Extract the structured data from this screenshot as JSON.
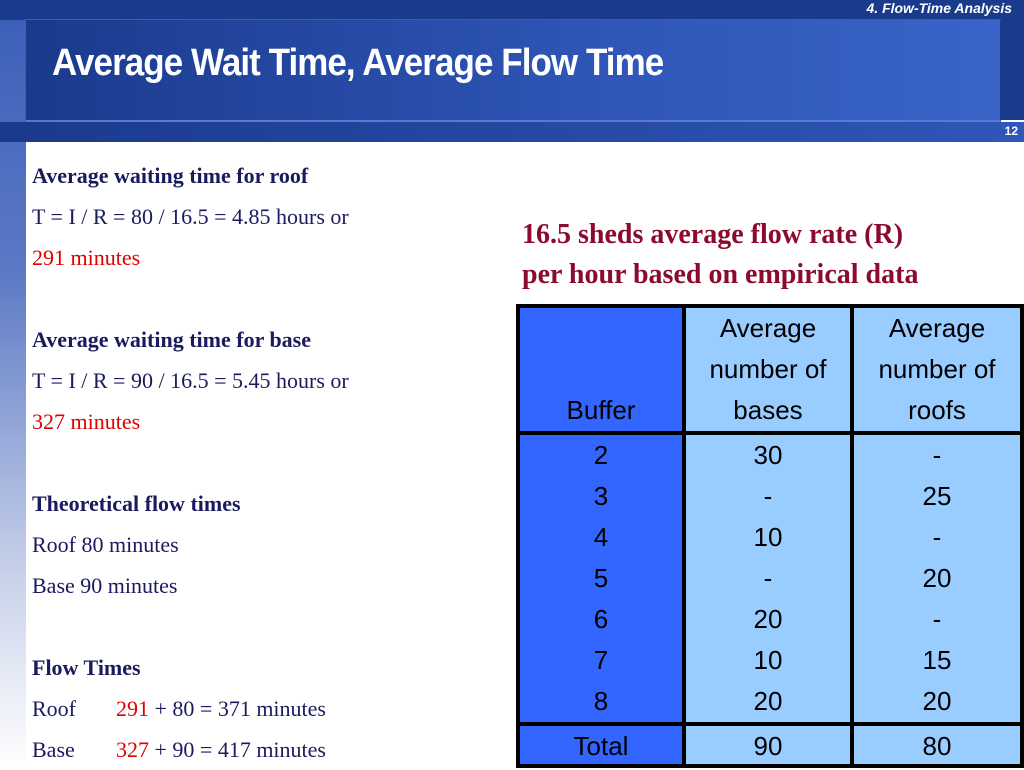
{
  "header": {
    "section": "4. Flow-Time Analysis",
    "title": "Average Wait Time, Average Flow Time",
    "page_number": "12"
  },
  "left": {
    "roof_heading": "Average waiting time for roof",
    "roof_formula": "T = I / R = 80 / 16.5 = 4.85 hours or",
    "roof_minutes": "291 minutes",
    "base_heading": "Average waiting time for base",
    "base_formula": "T = I / R = 90 / 16.5 = 5.45 hours or",
    "base_minutes": "327 minutes",
    "theo_heading": "Theoretical flow times",
    "theo_roof": "Roof 80 minutes",
    "theo_base": "Base 90 minutes",
    "flow_heading": "Flow Times",
    "flow_roof_label": "Roof",
    "flow_roof_wait": "291",
    "flow_roof_rest": " + 80 = 371 minutes",
    "flow_base_label": "Base",
    "flow_base_wait": "327",
    "flow_base_rest": " + 90 = 417 minutes"
  },
  "caption": {
    "line1": "16.5 sheds average flow rate (R)",
    "line2": "per hour based on empirical data"
  },
  "table": {
    "headers": {
      "buffer": "Buffer",
      "bases": [
        "Average",
        "number of",
        "bases"
      ],
      "roofs": [
        "Average",
        "number of",
        "roofs"
      ]
    },
    "buffers": [
      "2",
      "3",
      "4",
      "5",
      "6",
      "7",
      "8"
    ],
    "bases": [
      "30",
      "-",
      "10",
      "-",
      "20",
      "10",
      "20"
    ],
    "roofs": [
      "-",
      "25",
      "-",
      "20",
      "-",
      "15",
      "20"
    ],
    "total_label": "Total",
    "total_bases": "90",
    "total_roofs": "80"
  }
}
